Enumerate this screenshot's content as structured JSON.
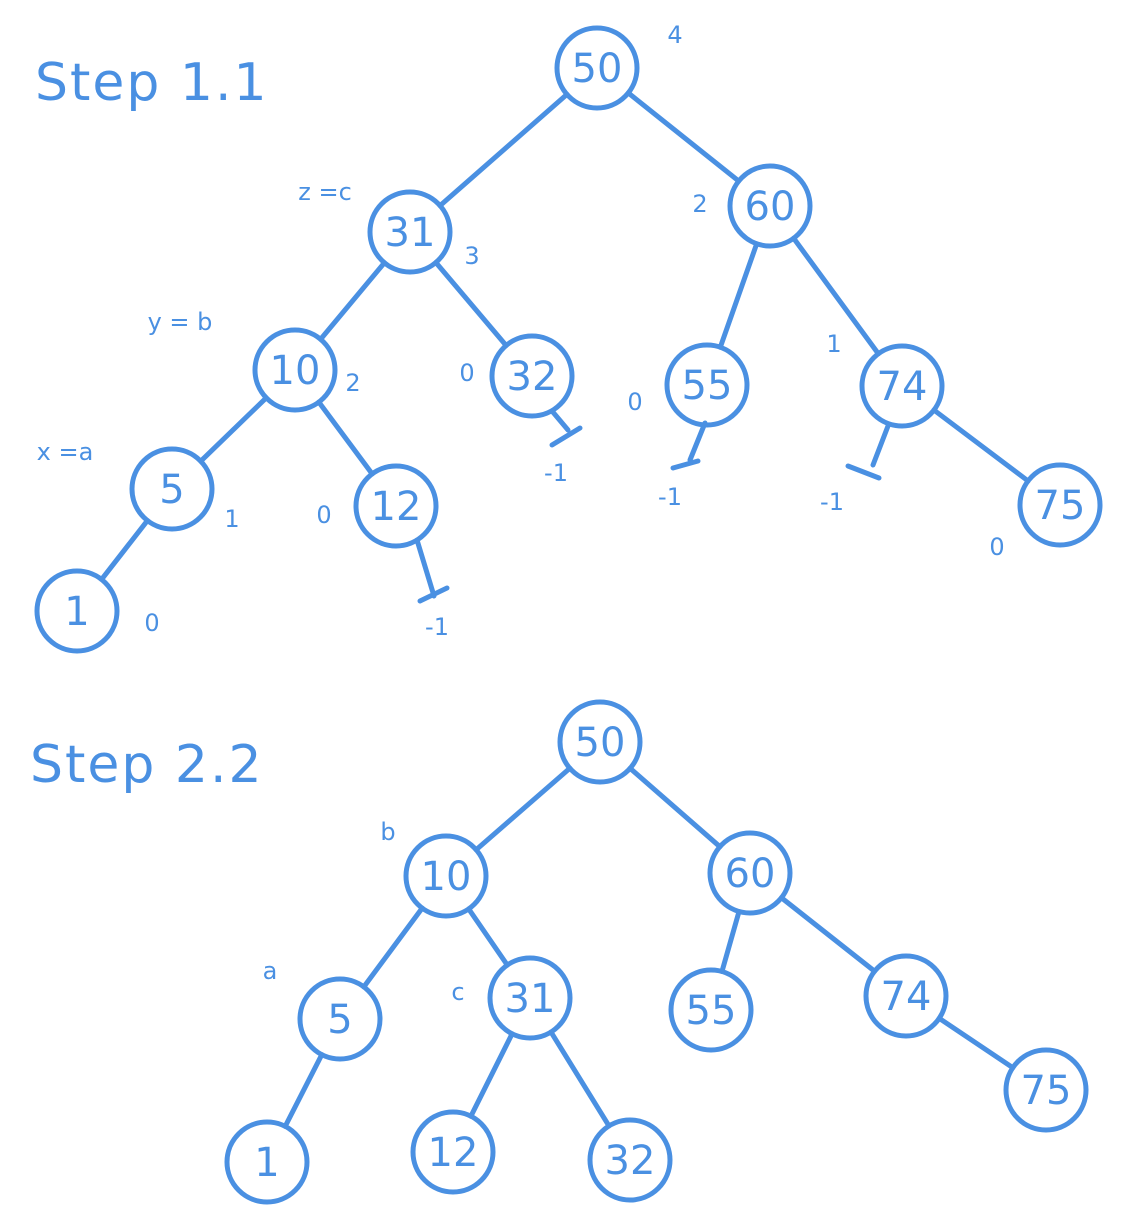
{
  "colors": {
    "ink": "#4a90e2",
    "background": "#ffffff"
  },
  "diagrams": [
    {
      "title": "Step 1.1",
      "nodes": [
        {
          "key": "50",
          "height": "4"
        },
        {
          "key": "31",
          "height": "3",
          "role": "z =c"
        },
        {
          "key": "60",
          "height": "2"
        },
        {
          "key": "10",
          "height": "2",
          "role": "y = b"
        },
        {
          "key": "32",
          "height": "0"
        },
        {
          "key": "55",
          "height": "0"
        },
        {
          "key": "74",
          "height": "1"
        },
        {
          "key": "5",
          "height": "1",
          "role": "x =a"
        },
        {
          "key": "12",
          "height": "0"
        },
        {
          "key": "75",
          "height": "0"
        },
        {
          "key": "1",
          "height": "0"
        }
      ],
      "edges": [
        [
          "50",
          "31"
        ],
        [
          "50",
          "60"
        ],
        [
          "31",
          "10"
        ],
        [
          "31",
          "32"
        ],
        [
          "60",
          "55"
        ],
        [
          "60",
          "74"
        ],
        [
          "10",
          "5"
        ],
        [
          "10",
          "12"
        ],
        [
          "74",
          "75"
        ],
        [
          "5",
          "1"
        ]
      ],
      "null_children": [
        {
          "parent": "12",
          "height": "-1"
        },
        {
          "parent": "32",
          "height": "-1"
        },
        {
          "parent": "55",
          "height": "-1"
        },
        {
          "parent": "74",
          "height": "-1"
        }
      ]
    },
    {
      "title": "Step 2.2",
      "nodes": [
        {
          "key": "50"
        },
        {
          "key": "10",
          "role": "b"
        },
        {
          "key": "60"
        },
        {
          "key": "5",
          "role": "a"
        },
        {
          "key": "31",
          "role": "c"
        },
        {
          "key": "55"
        },
        {
          "key": "74"
        },
        {
          "key": "1"
        },
        {
          "key": "12"
        },
        {
          "key": "32"
        },
        {
          "key": "75"
        }
      ],
      "edges": [
        [
          "50",
          "10"
        ],
        [
          "50",
          "60"
        ],
        [
          "10",
          "5"
        ],
        [
          "10",
          "31"
        ],
        [
          "60",
          "55"
        ],
        [
          "60",
          "74"
        ],
        [
          "5",
          "1"
        ],
        [
          "31",
          "12"
        ],
        [
          "31",
          "32"
        ],
        [
          "74",
          "75"
        ]
      ]
    }
  ]
}
